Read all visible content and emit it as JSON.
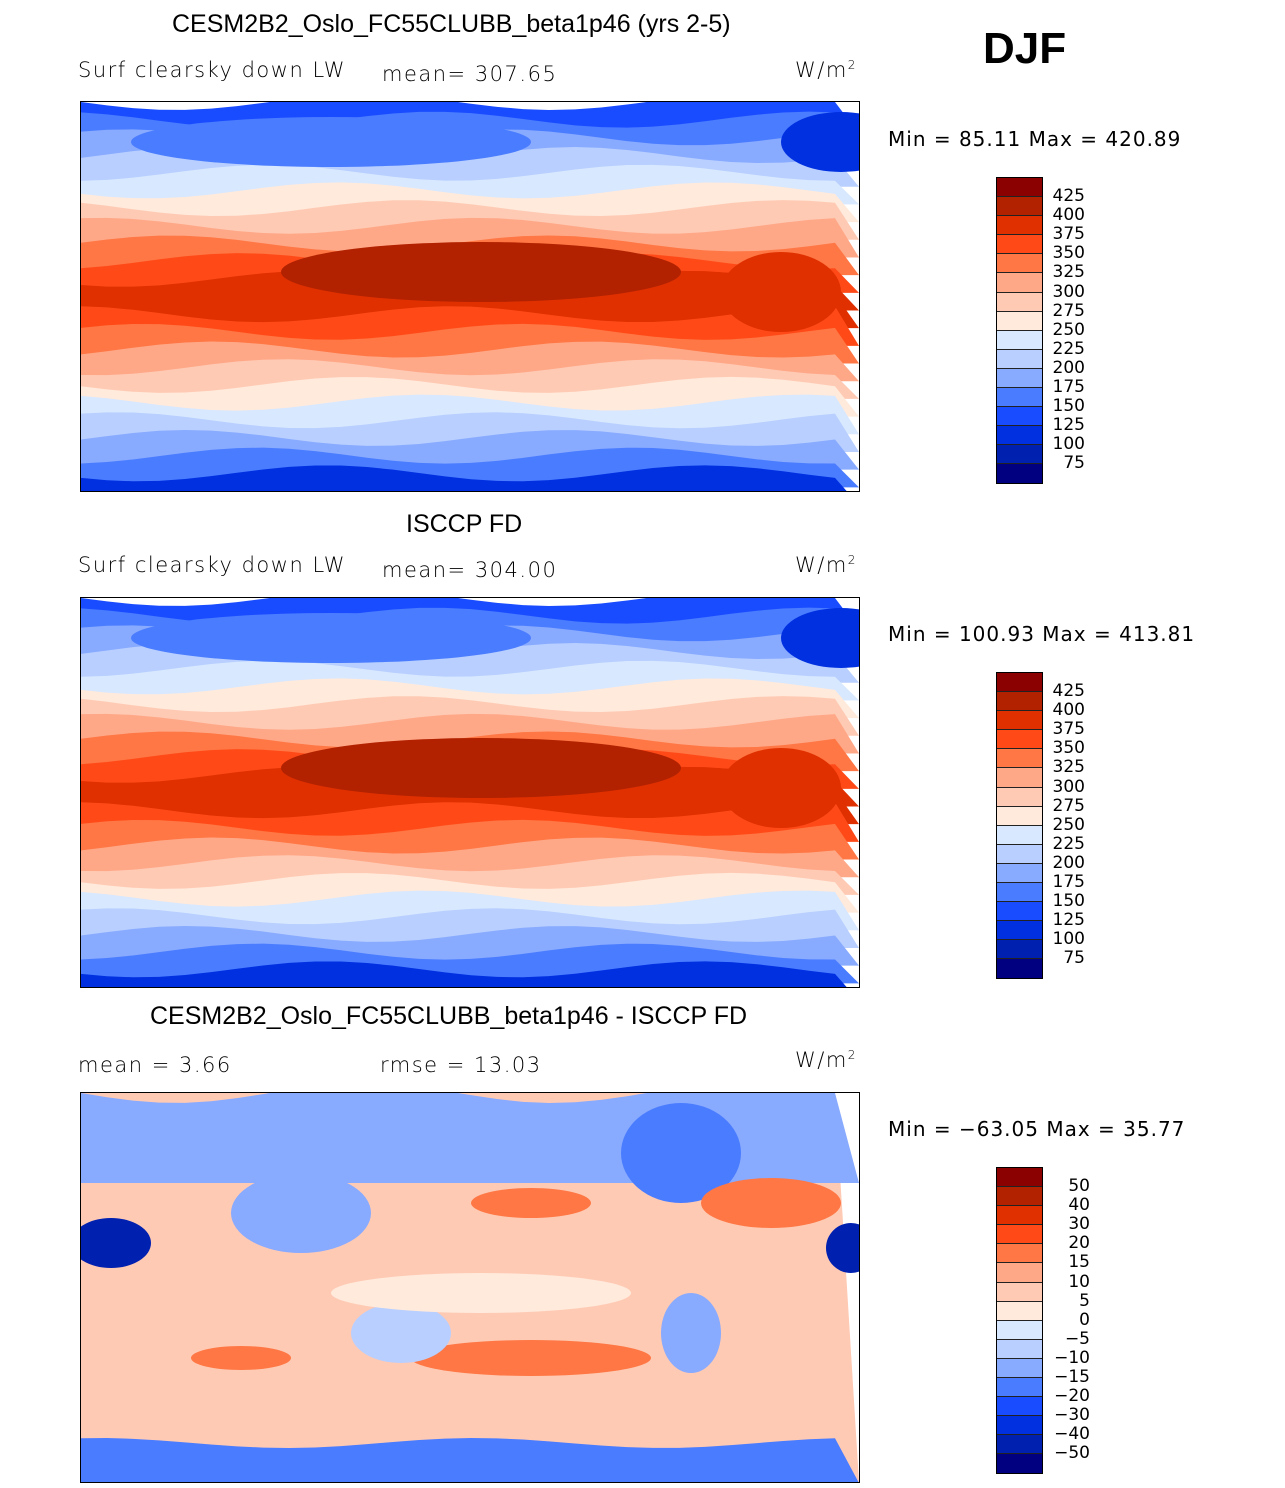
{
  "season": "DJF",
  "panels": [
    {
      "title": "CESM2B2_Oslo_FC55CLUBB_beta1p46 (yrs 2-5)",
      "variable": "Surf clearsky down LW",
      "stat": "mean=  307.65",
      "units": "W/m",
      "units_exp": "2",
      "minmax": "Min  =   85.11  Max  =  420.89",
      "levels": [
        "425",
        "400",
        "375",
        "350",
        "325",
        "300",
        "275",
        "250",
        "225",
        "200",
        "175",
        "150",
        "125",
        "100",
        "75"
      ]
    },
    {
      "title": "ISCCP FD",
      "variable": "Surf clearsky down LW",
      "stat": "mean=  304.00",
      "units": "W/m",
      "units_exp": "2",
      "minmax": "Min  =  100.93  Max  =  413.81",
      "levels": [
        "425",
        "400",
        "375",
        "350",
        "325",
        "300",
        "275",
        "250",
        "225",
        "200",
        "175",
        "150",
        "125",
        "100",
        "75"
      ]
    },
    {
      "title": "CESM2B2_Oslo_FC55CLUBB_beta1p46 - ISCCP FD",
      "variable": "mean  =     3.66",
      "stat": "rmse  =    13.03",
      "units": "W/m",
      "units_exp": "2",
      "minmax": "Min  =  −63.05  Max  =    35.77",
      "levels": [
        "50",
        "40",
        "30",
        "20",
        "15",
        "10",
        "5",
        "0",
        "−5",
        "−10",
        "−15",
        "−20",
        "−30",
        "−40",
        "−50"
      ]
    }
  ],
  "colormap": [
    "#8b0000",
    "#b22200",
    "#e03000",
    "#ff4a18",
    "#ff7744",
    "#ffa888",
    "#ffcab4",
    "#ffeadc",
    "#d8e8ff",
    "#b8cfff",
    "#88aaff",
    "#4a7cff",
    "#1a4cff",
    "#0030e0",
    "#0020b0",
    "#000080"
  ]
}
